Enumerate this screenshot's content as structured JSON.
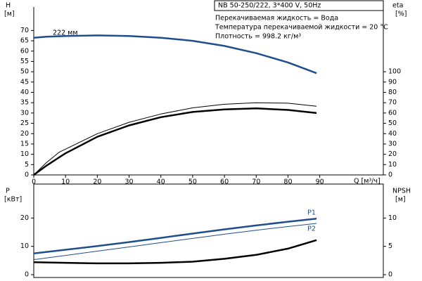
{
  "chart_data": [
    {
      "type": "line",
      "model": "NB 50-250/222, 3*400 V, 50Hz",
      "notes": [
        "Перекачиваемая жидкость = Вода",
        "Температура перекачиваемой жидкости = 20 °C",
        "Плотность = 998.2 кг/м³"
      ],
      "annotation": "222 мм",
      "ylabel": "H",
      "yunit": "[м]",
      "y2label": "eta",
      "y2unit": "[%]",
      "xlabel": "Q [м³/ч]",
      "x": [
        0,
        4,
        8,
        10,
        20,
        30,
        40,
        50,
        60,
        70,
        80,
        89
      ],
      "series": [
        {
          "color": "#1f4e8c",
          "line_width": 2.5,
          "values": [
            66.5,
            67,
            67.2,
            67.3,
            67.6,
            67.3,
            66.5,
            65,
            62.5,
            59,
            54.5,
            49.3
          ]
        },
        {
          "color": "#000000",
          "line_width": 1,
          "axis": "y2",
          "values": [
            0,
            12,
            22,
            25,
            40,
            51,
            59,
            65,
            68.5,
            70,
            69.5,
            66.5
          ]
        },
        {
          "color": "#000000",
          "line_width": 2.5,
          "axis": "y2",
          "values": [
            0,
            9,
            17,
            21,
            37,
            48,
            56,
            61,
            63.5,
            64.5,
            63,
            60
          ]
        }
      ],
      "xlim": [
        0,
        110
      ],
      "xticks": [
        0,
        10,
        20,
        30,
        40,
        50,
        60,
        70,
        80,
        90
      ],
      "ylim": [
        0,
        80
      ],
      "yticks": [
        0,
        5,
        10,
        15,
        20,
        25,
        30,
        35,
        40,
        45,
        50,
        55,
        60,
        65,
        70
      ],
      "y2lim": [
        0,
        160
      ],
      "y2ticks": [
        0,
        10,
        20,
        30,
        40,
        50,
        60,
        70,
        80,
        90,
        100
      ]
    },
    {
      "type": "line",
      "ylabel": "P",
      "yunit": "[кВт]",
      "y2label": "NPSH",
      "y2unit": "[м]",
      "x": [
        0,
        10,
        20,
        30,
        40,
        50,
        60,
        70,
        80,
        89
      ],
      "series": [
        {
          "name": "P1",
          "color": "#1f4e8c",
          "line_width": 2.5,
          "values": [
            7.5,
            8.8,
            10.1,
            11.5,
            13,
            14.5,
            16,
            17.4,
            18.7,
            19.8
          ]
        },
        {
          "name": "P2",
          "color": "#1f4e8c",
          "line_width": 1,
          "values": [
            5.3,
            6.8,
            8.3,
            9.8,
            11.3,
            12.8,
            14.3,
            15.7,
            17,
            18.1
          ]
        },
        {
          "color": "#000000",
          "line_width": 2.5,
          "axis": "y2",
          "values": [
            2.2,
            2.1,
            2.0,
            2.0,
            2.1,
            2.3,
            2.8,
            3.5,
            4.6,
            6.1
          ]
        }
      ],
      "xlim": [
        0,
        110
      ],
      "ylim": [
        0,
        32
      ],
      "yticks": [
        0,
        10,
        20
      ],
      "y2lim": [
        0,
        16
      ],
      "y2ticks": [
        0,
        5,
        10
      ]
    }
  ]
}
